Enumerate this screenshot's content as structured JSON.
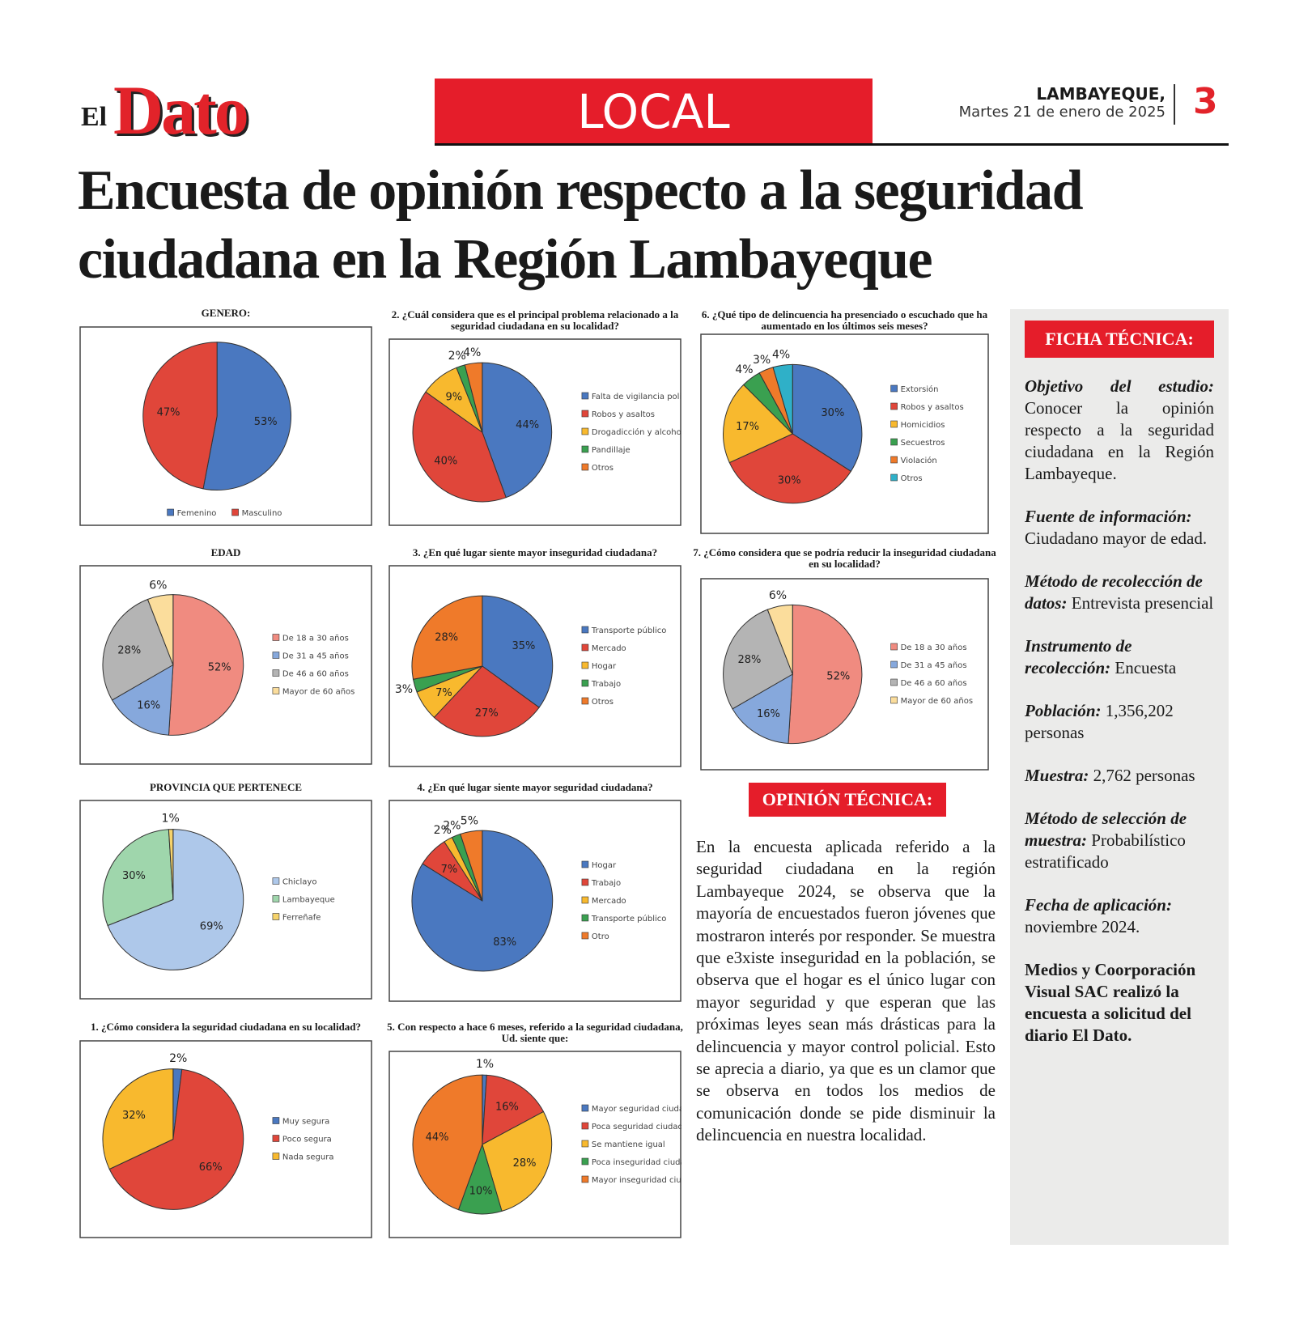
{
  "header": {
    "logo_small": "El",
    "logo": "Dato",
    "section": "LOCAL",
    "place": "LAMBAYEQUE,",
    "date": "Martes 21 de enero de 2025",
    "page": "3"
  },
  "headline": [
    "Encuesta de opinión respecto a la seguridad",
    "ciudadana en la Región Lambayeque"
  ],
  "chart_data": [
    {
      "type": "pie",
      "title": "GENERO:",
      "legend": "bottom",
      "categories": [
        "Femenino",
        "Masculino"
      ],
      "values": [
        53,
        47
      ],
      "value_labels": [
        "53%",
        "47%"
      ],
      "colors": [
        "#4a78c0",
        "#e0463a"
      ]
    },
    {
      "type": "pie",
      "title": "EDAD",
      "legend": "right",
      "categories": [
        "De 18 a 30 años",
        "De 31 a 45 años",
        "De 46 a 60 años",
        "Mayor de 60 años"
      ],
      "values": [
        52,
        16,
        28,
        6
      ],
      "value_labels": [
        "52%",
        "16%",
        "28%",
        "6%"
      ],
      "colors": [
        "#f08b80",
        "#86a8dc",
        "#b4b4b4",
        "#fbdd9c"
      ]
    },
    {
      "type": "pie",
      "title": "PROVINCIA QUE PERTENECE",
      "legend": "right",
      "categories": [
        "Chiclayo",
        "Lambayeque",
        "Ferreñafe"
      ],
      "values": [
        69,
        30,
        1
      ],
      "value_labels": [
        "69%",
        "30%",
        "1%"
      ],
      "colors": [
        "#aec8ea",
        "#9fd6ac",
        "#f6d36b"
      ]
    },
    {
      "type": "pie",
      "title": "1. ¿Cómo considera la seguridad ciudadana en su localidad?",
      "legend": "right",
      "categories": [
        "Muy segura",
        "Poco segura",
        "Nada segura"
      ],
      "values": [
        2,
        66,
        32
      ],
      "value_labels": [
        "2%",
        "66%",
        "32%"
      ],
      "colors": [
        "#4a78c0",
        "#e0463a",
        "#f8b92e"
      ]
    },
    {
      "type": "pie",
      "title": "2. ¿Cuál considera que es el principal problema relacionado a la seguridad ciudadana en su localidad?",
      "legend": "right",
      "categories": [
        "Falta de vigilancia policial",
        "Robos y asaltos",
        "Drogadicción y alcoholismo",
        "Pandillaje",
        "Otros"
      ],
      "values": [
        44,
        40,
        9,
        2,
        4
      ],
      "value_labels": [
        "44%",
        "40%",
        "9%",
        "2%",
        "4%"
      ],
      "colors": [
        "#4a78c0",
        "#e0463a",
        "#f8b92e",
        "#3aa050",
        "#ef7a2a"
      ]
    },
    {
      "type": "pie",
      "title": "3. ¿En qué lugar siente mayor inseguridad ciudadana?",
      "legend": "right",
      "categories": [
        "Transporte público",
        "Mercado",
        "Hogar",
        "Trabajo",
        "Otros"
      ],
      "values": [
        35,
        27,
        7,
        3,
        28
      ],
      "value_labels": [
        "35%",
        "27%",
        "7%",
        "3%",
        "28%"
      ],
      "colors": [
        "#4a78c0",
        "#e0463a",
        "#f8b92e",
        "#3aa050",
        "#ef7a2a"
      ]
    },
    {
      "type": "pie",
      "title": "4. ¿En qué lugar siente mayor seguridad ciudadana?",
      "legend": "right",
      "categories": [
        "Hogar",
        "Trabajo",
        "Mercado",
        "Transporte público",
        "Otro"
      ],
      "values": [
        83,
        7,
        2,
        2,
        5
      ],
      "value_labels": [
        "83%",
        "7%",
        "2%",
        "2%",
        "5%"
      ],
      "colors": [
        "#4a78c0",
        "#e0463a",
        "#f8b92e",
        "#3aa050",
        "#ef7a2a"
      ]
    },
    {
      "type": "pie",
      "title": "5. Con respecto a hace 6 meses, referido a la seguridad ciudadana, Ud. siente que:",
      "legend": "right",
      "categories": [
        "Mayor seguridad ciudadana",
        "Poca seguridad ciudadana",
        "Se mantiene igual",
        "Poca inseguridad ciudadana",
        "Mayor inseguridad ciudadana"
      ],
      "values": [
        1,
        16,
        28,
        10,
        44
      ],
      "value_labels": [
        "1%",
        "16%",
        "28%",
        "10%",
        "44%"
      ],
      "colors": [
        "#4a78c0",
        "#e0463a",
        "#f8b92e",
        "#3aa050",
        "#ef7a2a"
      ]
    },
    {
      "type": "pie",
      "title": "6. ¿Qué tipo de delincuencia ha presenciado o escuchado que ha aumentado en los últimos seis meses?",
      "legend": "right",
      "categories": [
        "Extorsión",
        "Robos y asaltos",
        "Homicidios",
        "Secuestros",
        "Violación",
        "Otros"
      ],
      "values": [
        30,
        30,
        17,
        4,
        3,
        4
      ],
      "value_labels": [
        "30%",
        "30%",
        "17%",
        "4%",
        "3%",
        "4%"
      ],
      "colors": [
        "#4a78c0",
        "#e0463a",
        "#f8b92e",
        "#3aa050",
        "#ef7a2a",
        "#2fb0c8"
      ]
    },
    {
      "type": "pie",
      "title": "7. ¿Cómo considera que se podría reducir la inseguridad ciudadana en su localidad?",
      "legend": "right",
      "categories": [
        "De 18 a 30 años",
        "De 31 a 45 años",
        "De 46 a 60 años",
        "Mayor de 60 años"
      ],
      "values": [
        52,
        16,
        28,
        6
      ],
      "value_labels": [
        "52%",
        "16%",
        "28%",
        "6%"
      ],
      "colors": [
        "#f08b80",
        "#86a8dc",
        "#b4b4b4",
        "#fbdd9c"
      ]
    }
  ],
  "opinion": {
    "title": "OPINIÓN TÉCNICA:",
    "text": "En la encuesta aplicada referido a la seguridad ciudadana en la región Lambayeque 2024, se observa que la mayoría de encuestados fueron jóvenes que mostraron interés por responder. Se muestra que e3xiste inseguridad en la población, se observa que el hogar es el único lugar con mayor seguridad y que esperan que las próximas leyes sean más drásticas para la delincuencia y mayor control policial. Esto se aprecia a diario, ya que es un clamor que se observa en todos los medios de comunicación donde se pide disminuir la delincuencia en nuestra localidad."
  },
  "ficha": {
    "title": "FICHA TÉCNICA:",
    "items": [
      {
        "label": "Objetivo del estudio:",
        "text": "Conocer la opinión respecto a la seguridad ciudadana en la Región Lambayeque."
      },
      {
        "label": "Fuente de información:",
        "text": "Ciudadano mayor de edad."
      },
      {
        "label": "Método de recolección de datos:",
        "text": "Entrevista presencial"
      },
      {
        "label": "Instrumento de recolección:",
        "text": "Encuesta"
      },
      {
        "label": "Población:",
        "text": "1,356,202 personas"
      },
      {
        "label": "Muestra:",
        "text": "2,762 personas"
      },
      {
        "label": "Método de selección de muestra:",
        "text": "Probabilístico estratificado"
      },
      {
        "label": "Fecha de aplicación:",
        "text": "noviembre 2024."
      }
    ],
    "note": "Medios y Coorporación Visual SAC realizó la encuesta a solicitud del diario El Dato."
  }
}
